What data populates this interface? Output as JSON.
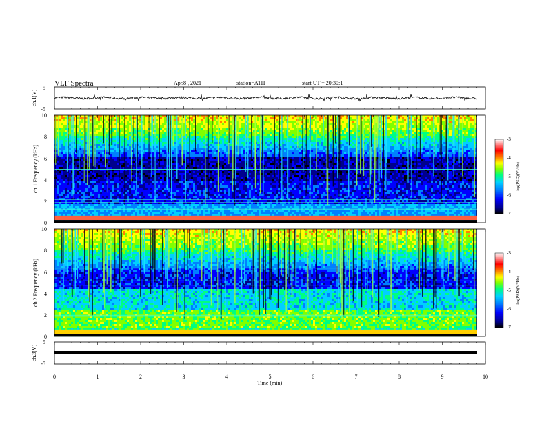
{
  "header": {
    "title": "VLF Spectra",
    "date": "Apr.8 , 2021",
    "station": "station=ATH",
    "start_ut": "start UT = 20:30:1"
  },
  "chart_data": [
    {
      "type": "line",
      "panel": "ch1-waveform",
      "ylabel": "ch.1(V)",
      "ylim": [
        -5,
        5
      ],
      "yticks": [
        "5",
        "-5"
      ],
      "xlim": [
        0,
        10
      ],
      "series": [
        {
          "color": "#000000"
        }
      ]
    },
    {
      "type": "heatmap",
      "panel": "ch1-spectrogram",
      "ylabel": "ch.1 Frequency (kHz)",
      "ylim": [
        0,
        10
      ],
      "yticks": [
        "0",
        "2",
        "4",
        "6",
        "8",
        "10"
      ],
      "xlim": [
        0,
        10
      ],
      "colorbar": {
        "label": "log(PSD)(V²/Hz)",
        "range": [
          -7,
          -3
        ],
        "ticks": [
          "-3",
          "-4",
          "-5",
          "-6",
          "-7"
        ]
      }
    },
    {
      "type": "heatmap",
      "panel": "ch2-spectrogram",
      "ylabel": "ch.2 Frequency (kHz)",
      "ylim": [
        0,
        10
      ],
      "yticks": [
        "0",
        "2",
        "4",
        "6",
        "8",
        "10"
      ],
      "xlim": [
        0,
        10
      ],
      "colorbar": {
        "label": "log(PSD)(V²/Hz)",
        "range": [
          -7,
          -3
        ],
        "ticks": [
          "-3",
          "-4",
          "-5",
          "-6",
          "-7"
        ]
      }
    },
    {
      "type": "line",
      "panel": "ch3-waveform",
      "ylabel": "ch.3(V)",
      "ylim": [
        -5,
        5
      ],
      "yticks": [
        "5",
        "-5"
      ],
      "xlim": [
        0,
        10
      ],
      "series": [
        {
          "color": "#000000"
        }
      ]
    }
  ],
  "xaxis": {
    "label": "Time (min)",
    "ticks": [
      "0",
      "1",
      "2",
      "3",
      "4",
      "5",
      "6",
      "7",
      "8",
      "9",
      "10"
    ]
  },
  "colors": {
    "colormap": [
      "#000000",
      "#00008c",
      "#0000ff",
      "#0080ff",
      "#00d0ff",
      "#00ff80",
      "#80ff00",
      "#ffff00",
      "#ff8000",
      "#ff0000",
      "#ffffff"
    ]
  }
}
